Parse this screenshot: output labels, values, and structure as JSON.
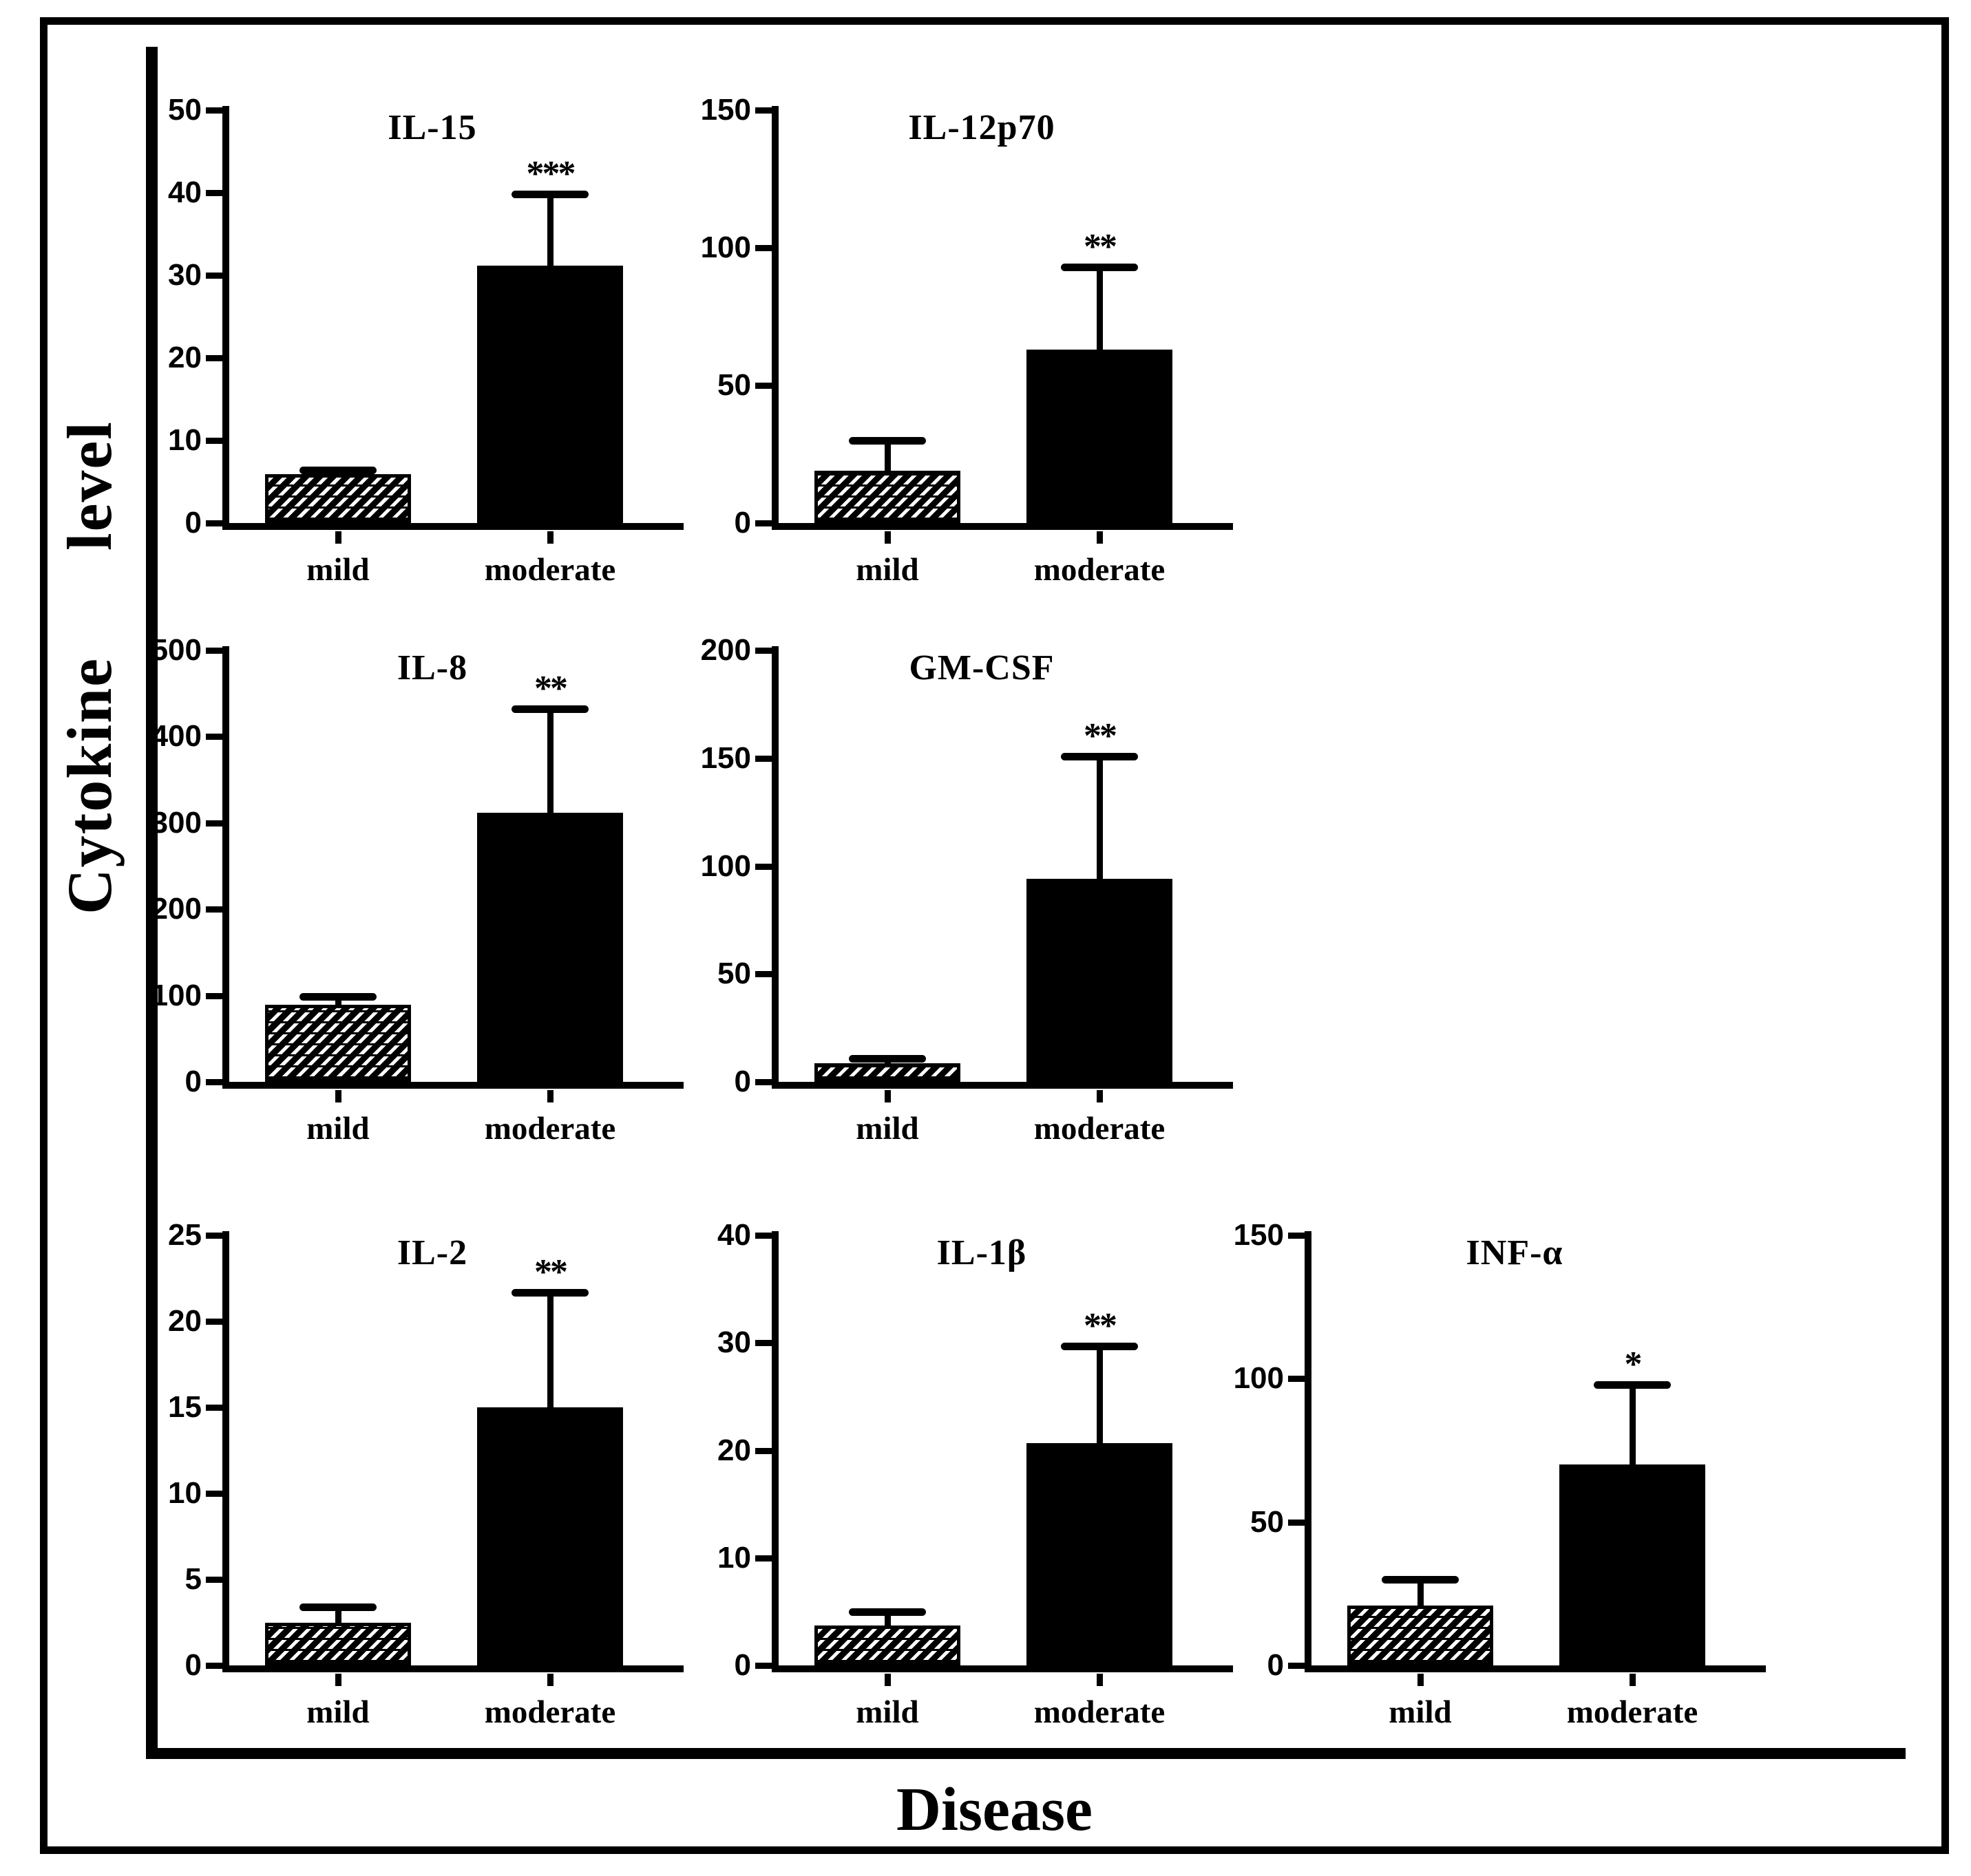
{
  "figure": {
    "x_axis_label": "Disease",
    "y_axis_label": "Cytokine level",
    "background_color": "#ffffff",
    "ink_color": "#000000",
    "bar_style_mild": "diagonal-hatch",
    "bar_style_moderate": "solid-black"
  },
  "chart_data": [
    {
      "id": "il15",
      "type": "bar",
      "title": "IL-15",
      "categories": [
        "mild",
        "moderate"
      ],
      "series": [
        {
          "name": "mild",
          "value": 5.9,
          "error_top": 6.4,
          "fill": "hatched"
        },
        {
          "name": "moderate",
          "value": 31.2,
          "error_top": 39.8,
          "fill": "solid-black"
        }
      ],
      "significance": "***",
      "ylim": [
        0,
        50
      ],
      "yticks": [
        0,
        10,
        20,
        30,
        40,
        50
      ],
      "grid_position": {
        "row": 0,
        "col": 0
      }
    },
    {
      "id": "il12p70",
      "type": "bar",
      "title": "IL-12p70",
      "categories": [
        "mild",
        "moderate"
      ],
      "series": [
        {
          "name": "mild",
          "value": 19,
          "error_top": 30,
          "fill": "hatched"
        },
        {
          "name": "moderate",
          "value": 63,
          "error_top": 93,
          "fill": "solid-black"
        }
      ],
      "significance": "**",
      "ylim": [
        0,
        150
      ],
      "yticks": [
        0,
        50,
        100,
        150
      ],
      "grid_position": {
        "row": 0,
        "col": 1
      }
    },
    {
      "id": "il8",
      "type": "bar",
      "title": "IL-8",
      "categories": [
        "mild",
        "moderate"
      ],
      "series": [
        {
          "name": "mild",
          "value": 89,
          "error_top": 99,
          "fill": "hatched"
        },
        {
          "name": "moderate",
          "value": 312,
          "error_top": 432,
          "fill": "solid-black"
        }
      ],
      "significance": "**",
      "ylim": [
        0,
        500
      ],
      "yticks": [
        0,
        100,
        200,
        300,
        400,
        500
      ],
      "grid_position": {
        "row": 1,
        "col": 0
      }
    },
    {
      "id": "gmcsf",
      "type": "bar",
      "title": "GM-CSF",
      "categories": [
        "mild",
        "moderate"
      ],
      "series": [
        {
          "name": "mild",
          "value": 8.6,
          "error_top": 11,
          "fill": "hatched"
        },
        {
          "name": "moderate",
          "value": 94,
          "error_top": 151,
          "fill": "solid-black"
        }
      ],
      "significance": "**",
      "ylim": [
        0,
        200
      ],
      "yticks": [
        0,
        50,
        100,
        150,
        200
      ],
      "grid_position": {
        "row": 1,
        "col": 1
      }
    },
    {
      "id": "il2",
      "type": "bar",
      "title": "IL-2",
      "categories": [
        "mild",
        "moderate"
      ],
      "series": [
        {
          "name": "mild",
          "value": 2.5,
          "error_top": 3.4,
          "fill": "hatched"
        },
        {
          "name": "moderate",
          "value": 15,
          "error_top": 21.7,
          "fill": "solid-black"
        }
      ],
      "significance": "**",
      "ylim": [
        0,
        25
      ],
      "yticks": [
        0,
        5,
        10,
        15,
        20,
        25
      ],
      "grid_position": {
        "row": 2,
        "col": 0
      }
    },
    {
      "id": "il1b",
      "type": "bar",
      "title": "IL-1β",
      "categories": [
        "mild",
        "moderate"
      ],
      "series": [
        {
          "name": "mild",
          "value": 3.7,
          "error_top": 5.0,
          "fill": "hatched"
        },
        {
          "name": "moderate",
          "value": 20.7,
          "error_top": 29.7,
          "fill": "solid-black"
        }
      ],
      "significance": "**",
      "ylim": [
        0,
        40
      ],
      "yticks": [
        0,
        10,
        20,
        30,
        40
      ],
      "grid_position": {
        "row": 2,
        "col": 1
      }
    },
    {
      "id": "infa",
      "type": "bar",
      "title": "INF-α",
      "categories": [
        "mild",
        "moderate"
      ],
      "series": [
        {
          "name": "mild",
          "value": 21,
          "error_top": 30,
          "fill": "hatched"
        },
        {
          "name": "moderate",
          "value": 70,
          "error_top": 98,
          "fill": "solid-black"
        }
      ],
      "significance": "*",
      "ylim": [
        0,
        150
      ],
      "yticks": [
        0,
        50,
        100,
        150
      ],
      "grid_position": {
        "row": 2,
        "col": 2
      }
    }
  ]
}
